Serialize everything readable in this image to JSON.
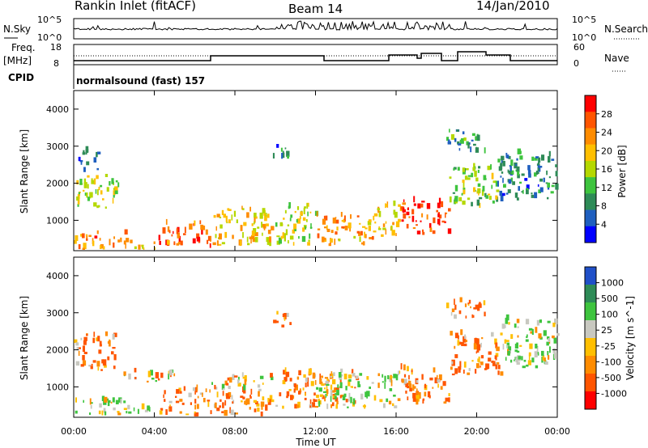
{
  "header": {
    "station": "Rankin Inlet (fitACF)",
    "beam": "Beam 14",
    "date": "14/Jan/2010"
  },
  "noise_panel": {
    "left_label": "N.Sky",
    "right_label": "N.Search",
    "ticks": [
      "10^5",
      "10^0"
    ],
    "right_ticks": [
      "10^5",
      "10^0"
    ]
  },
  "freq_panel": {
    "left_label_top": "Freq.",
    "left_label_unit": "[MHz]",
    "left_ticks": [
      "18",
      "8"
    ],
    "right_label": "Nave",
    "right_ticks": [
      "60",
      "0"
    ],
    "cpid_label": "CPID",
    "cpid_text": "normalsound (fast) 157"
  },
  "axes": {
    "xlabel": "Time UT",
    "ylabel": "Slant Range [km]",
    "x_ticks": [
      "00:00",
      "04:00",
      "08:00",
      "12:00",
      "16:00",
      "20:00",
      "00:00"
    ],
    "y_ticks": [
      "1000",
      "2000",
      "3000",
      "4000"
    ],
    "y_tick_values": [
      1000,
      2000,
      3000,
      4000
    ],
    "y_range": [
      180,
      4500
    ],
    "x_range_hours": [
      0,
      24
    ]
  },
  "power_scale": {
    "label": "Power [dB]",
    "ticks": [
      "28",
      "24",
      "20",
      "16",
      "12",
      "8",
      "4"
    ],
    "colors": [
      "#ff0000",
      "#ff5500",
      "#ff8c00",
      "#ffbf00",
      "#b5d800",
      "#3ec43e",
      "#2e8b57",
      "#1f5fbf",
      "#0000ff"
    ]
  },
  "velocity_scale": {
    "label": "Velocity [m s^-1]",
    "ticks": [
      "1000",
      "500",
      "100",
      "25",
      "-25",
      "-100",
      "-500",
      "-1000"
    ],
    "colors": [
      "#2050c8",
      "#2e8b57",
      "#3ec43e",
      "#c8c8c0",
      "#ffbf00",
      "#ff8c00",
      "#ff5500",
      "#ff0000"
    ]
  },
  "chart_data": {
    "type": "heatmap",
    "title": "Rankin Inlet (fitACF) Beam 14 14/Jan/2010",
    "xlabel": "Time UT",
    "ylabel": "Slant Range [km]",
    "xlim": [
      0,
      24
    ],
    "ylim": [
      180,
      4500
    ],
    "power_regions": [
      {
        "t0": 0.0,
        "t1": 2.6,
        "r0": 200,
        "r1": 650,
        "db": 24
      },
      {
        "t0": 0.0,
        "t1": 2.2,
        "r0": 1300,
        "r1": 2200,
        "db": 16
      },
      {
        "t0": 0.2,
        "t1": 1.2,
        "r0": 2300,
        "r1": 2900,
        "db": 8
      },
      {
        "t0": 2.4,
        "t1": 4.0,
        "r0": 200,
        "r1": 450,
        "db": 20
      },
      {
        "t0": 4.2,
        "t1": 6.8,
        "r0": 250,
        "r1": 900,
        "db": 26
      },
      {
        "t0": 6.8,
        "t1": 9.8,
        "r0": 300,
        "r1": 1300,
        "db": 20
      },
      {
        "t0": 10.0,
        "t1": 12.0,
        "r0": 300,
        "r1": 1400,
        "db": 16
      },
      {
        "t0": 12.0,
        "t1": 14.8,
        "r0": 300,
        "r1": 1100,
        "db": 22
      },
      {
        "t0": 14.8,
        "t1": 16.2,
        "r0": 500,
        "r1": 1400,
        "db": 20
      },
      {
        "t0": 16.2,
        "t1": 18.6,
        "r0": 600,
        "r1": 1500,
        "db": 28
      },
      {
        "t0": 18.6,
        "t1": 21.0,
        "r0": 1300,
        "r1": 2400,
        "db": 14
      },
      {
        "t0": 21.0,
        "t1": 24.0,
        "r0": 1500,
        "r1": 2800,
        "db": 8
      },
      {
        "t0": 9.8,
        "t1": 10.8,
        "r0": 2600,
        "r1": 3000,
        "db": 8
      },
      {
        "t0": 18.4,
        "t1": 20.4,
        "r0": 2800,
        "r1": 3400,
        "db": 10
      }
    ],
    "velocity_regions": [
      {
        "t0": 0.0,
        "t1": 2.6,
        "r0": 200,
        "r1": 650,
        "v": 100
      },
      {
        "t0": 0.0,
        "t1": 2.0,
        "r0": 1400,
        "r1": 2400,
        "v": -100
      },
      {
        "t0": 2.4,
        "t1": 4.0,
        "r0": 200,
        "r1": 500,
        "v": 100
      },
      {
        "t0": 2.2,
        "t1": 5.0,
        "r0": 1100,
        "r1": 1400,
        "v": 0
      },
      {
        "t0": 4.2,
        "t1": 9.8,
        "r0": 200,
        "r1": 900,
        "v": -100
      },
      {
        "t0": 6.8,
        "t1": 9.8,
        "r0": 900,
        "r1": 1300,
        "v": 0
      },
      {
        "t0": 10.0,
        "t1": 14.0,
        "r0": 400,
        "r1": 1400,
        "v": -100
      },
      {
        "t0": 12.0,
        "t1": 16.0,
        "r0": 400,
        "r1": 1300,
        "v": 100
      },
      {
        "t0": 16.0,
        "t1": 18.6,
        "r0": 500,
        "r1": 1500,
        "v": -100
      },
      {
        "t0": 18.6,
        "t1": 21.2,
        "r0": 1300,
        "r1": 2400,
        "v": -100
      },
      {
        "t0": 21.2,
        "t1": 24.0,
        "r0": 1500,
        "r1": 2800,
        "v": 100
      },
      {
        "t0": 18.4,
        "t1": 20.4,
        "r0": 2800,
        "r1": 3300,
        "v": -100
      },
      {
        "t0": 9.8,
        "t1": 10.8,
        "r0": 2600,
        "r1": 3000,
        "v": -100
      }
    ]
  }
}
